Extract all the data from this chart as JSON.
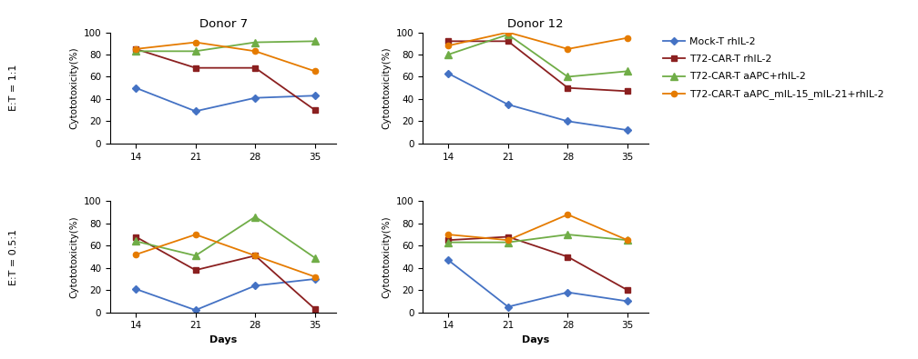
{
  "days": [
    14,
    21,
    28,
    35
  ],
  "donor7_11": {
    "blue": [
      50,
      29,
      41,
      43
    ],
    "red": [
      85,
      68,
      68,
      30
    ],
    "green": [
      83,
      83,
      91,
      92
    ],
    "orange": [
      85,
      91,
      83,
      65
    ]
  },
  "donor12_11": {
    "blue": [
      63,
      35,
      20,
      12
    ],
    "red": [
      92,
      92,
      50,
      47
    ],
    "green": [
      80,
      98,
      60,
      65
    ],
    "orange": [
      88,
      100,
      85,
      95
    ]
  },
  "donor7_05": {
    "blue": [
      21,
      2,
      24,
      30
    ],
    "red": [
      68,
      38,
      51,
      3
    ],
    "green": [
      64,
      51,
      86,
      49
    ],
    "orange": [
      52,
      70,
      51,
      32
    ]
  },
  "donor12_05": {
    "blue": [
      47,
      5,
      18,
      10
    ],
    "red": [
      65,
      68,
      50,
      20
    ],
    "green": [
      63,
      63,
      70,
      65
    ],
    "orange": [
      70,
      65,
      88,
      65
    ]
  },
  "colors": {
    "blue": "#4472C4",
    "red": "#8B2020",
    "green": "#70AD47",
    "orange": "#E57B00"
  },
  "legend_labels": [
    "Mock-T rhIL-2",
    "T72-CAR-T rhIL-2",
    "T72-CAR-T aAPC+rhIL-2",
    "T72-CAR-T aAPC_mIL-15_mIL-21+rhIL-2"
  ],
  "title_donor7": "Donor 7",
  "title_donor12": "Donor 12",
  "et_11_label": "E:T = 1:1",
  "et_05_label": "E:T = 0.5:1",
  "ylabel": "Cytototoxicity(%)",
  "xlabel": "Days",
  "ylim": [
    0,
    100
  ],
  "yticks": [
    0,
    20,
    40,
    60,
    80,
    100
  ],
  "xticks": [
    14,
    21,
    28,
    35
  ]
}
